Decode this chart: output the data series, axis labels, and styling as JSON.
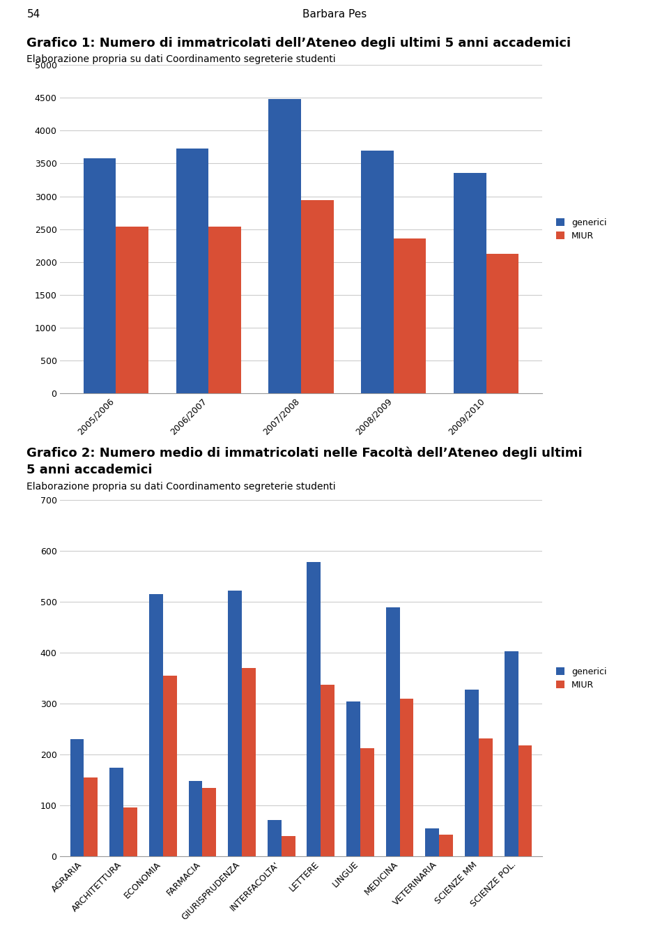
{
  "page_number": "54",
  "page_author": "Barbara Pes",
  "chart1_title": "Grafico 1: Numero di immatricolati dell’Ateneo degli ultimi 5 anni accademici",
  "chart1_subtitle": "Elaborazione propria su dati Coordinamento segreterie studenti",
  "chart1_categories": [
    "2005/2006",
    "2006/2007",
    "2007/2008",
    "2008/2009",
    "2009/2010"
  ],
  "chart1_generici": [
    3580,
    3730,
    4480,
    3690,
    3360
  ],
  "chart1_miur": [
    2540,
    2540,
    2940,
    2360,
    2130
  ],
  "chart1_ylim": [
    0,
    5000
  ],
  "chart1_yticks": [
    0,
    500,
    1000,
    1500,
    2000,
    2500,
    3000,
    3500,
    4000,
    4500,
    5000
  ],
  "chart2_title_line1": "Grafico 2: Numero medio di immatricolati nelle Facoltà dell’Ateneo degli ultimi",
  "chart2_title_line2": "5 anni accademici",
  "chart2_subtitle": "Elaborazione propria su dati Coordinamento segreterie studenti",
  "chart2_categories": [
    "AGRARIA",
    "ARCHITETTURA",
    "ECONOMIA",
    "FARMACIA",
    "GIURISPRUDENZA",
    "INTERFACOLTA'",
    "LETTERE",
    "LINGUE",
    "MEDICINA",
    "VETERINARIA",
    "SCIENZE MM",
    "SCIENZE POL."
  ],
  "chart2_generici": [
    230,
    175,
    515,
    148,
    522,
    72,
    578,
    305,
    490,
    55,
    328,
    403
  ],
  "chart2_miur": [
    155,
    96,
    355,
    135,
    370,
    40,
    337,
    213,
    310,
    43,
    232,
    218
  ],
  "chart2_ylim": [
    0,
    700
  ],
  "chart2_yticks": [
    0,
    100,
    200,
    300,
    400,
    500,
    600,
    700
  ],
  "color_generici": "#2E5EA8",
  "color_miur": "#D94F35",
  "legend_labels": [
    "generici",
    "MIUR"
  ],
  "bar_width": 0.35,
  "grid_color": "#CCCCCC",
  "background_color": "#FFFFFF",
  "title_fontsize": 13,
  "subtitle_fontsize": 10,
  "tick_fontsize": 9,
  "legend_fontsize": 9
}
